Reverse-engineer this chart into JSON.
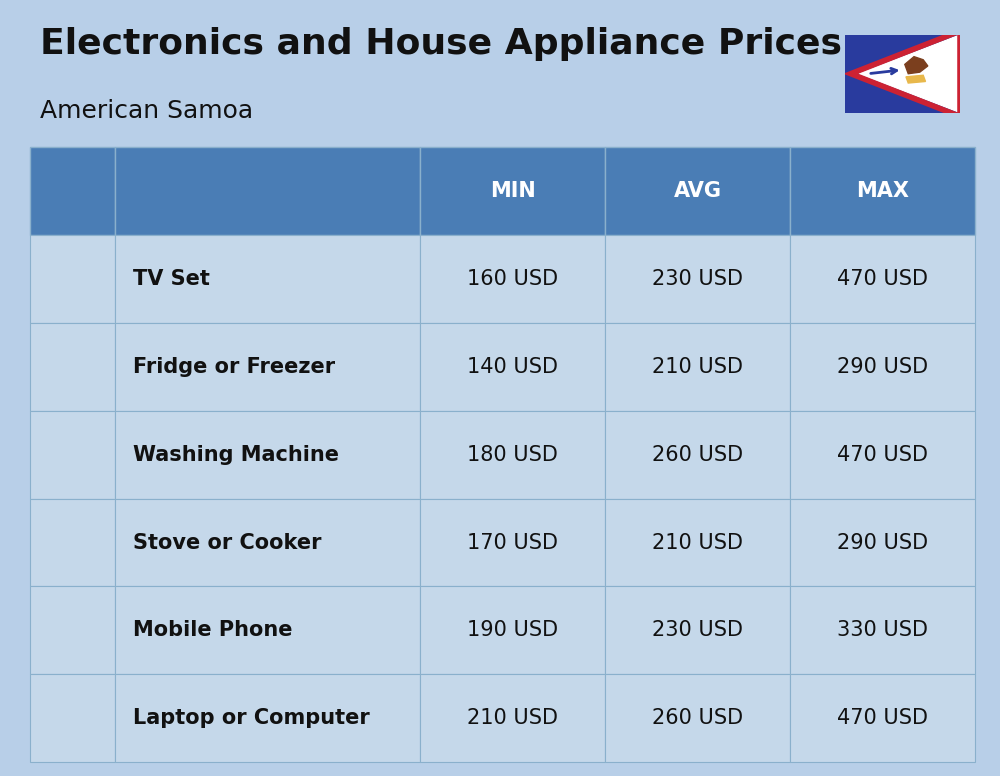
{
  "title_display": "Electronics and House Appliance Prices",
  "subtitle": "American Samoa",
  "background_color": "#b8cfe8",
  "header_color": "#4a7db5",
  "header_text_color": "#ffffff",
  "row_color": "#c5d8ea",
  "cell_line_color": "#8ab0cc",
  "rows": [
    {
      "icon": "tv",
      "name": "TV Set",
      "min": "160 USD",
      "avg": "230 USD",
      "max": "470 USD"
    },
    {
      "icon": "fridge",
      "name": "Fridge or Freezer",
      "min": "140 USD",
      "avg": "210 USD",
      "max": "290 USD"
    },
    {
      "icon": "washing",
      "name": "Washing Machine",
      "min": "180 USD",
      "avg": "260 USD",
      "max": "470 USD"
    },
    {
      "icon": "stove",
      "name": "Stove or Cooker",
      "min": "170 USD",
      "avg": "210 USD",
      "max": "290 USD"
    },
    {
      "icon": "phone",
      "name": "Mobile Phone",
      "min": "190 USD",
      "avg": "230 USD",
      "max": "330 USD"
    },
    {
      "icon": "laptop",
      "name": "Laptop or Computer",
      "min": "210 USD",
      "avg": "260 USD",
      "max": "470 USD"
    }
  ],
  "title_fontsize": 26,
  "subtitle_fontsize": 18,
  "header_fontsize": 15,
  "cell_fontsize": 15,
  "name_fontsize": 15
}
